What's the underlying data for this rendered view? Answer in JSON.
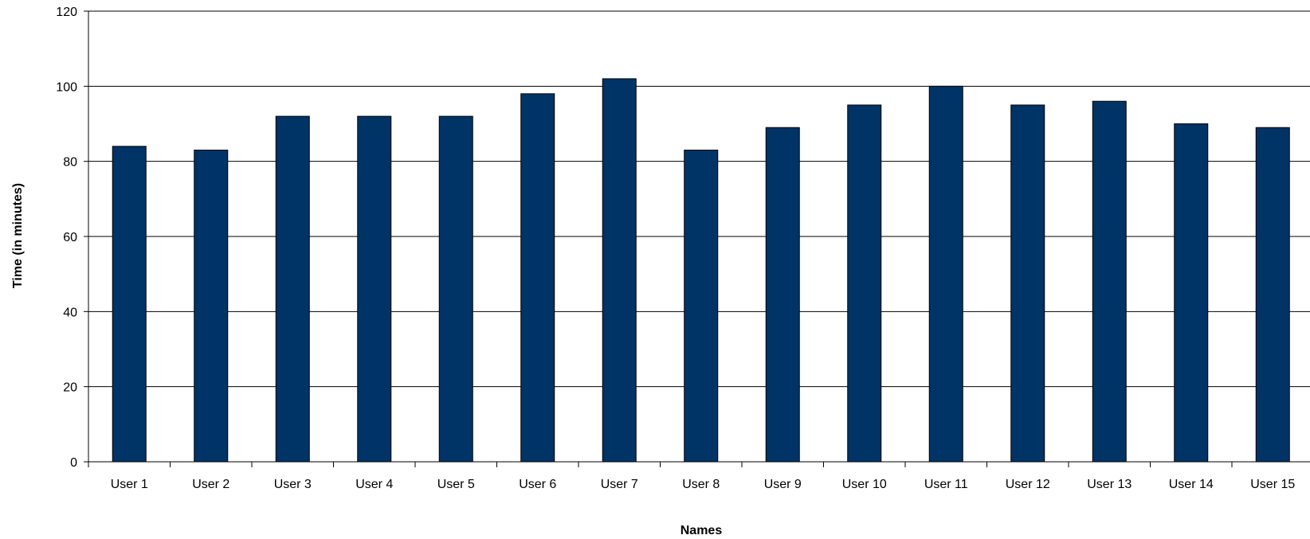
{
  "chart_data": {
    "type": "bar",
    "title": "",
    "xlabel": "Names",
    "ylabel": "Time (in minutes)",
    "categories": [
      "User 1",
      "User 2",
      "User 3",
      "User 4",
      "User 5",
      "User 6",
      "User 7",
      "User 8",
      "User 9",
      "User 10",
      "User 11",
      "User 12",
      "User 13",
      "User 14",
      "User 15"
    ],
    "values": [
      84,
      83,
      92,
      92,
      92,
      98,
      102,
      83,
      89,
      95,
      100,
      95,
      96,
      90,
      89
    ],
    "ylim": [
      0,
      120
    ],
    "yticks": [
      "0",
      "20",
      "40",
      "60",
      "80",
      "100",
      "120"
    ],
    "grid": true,
    "legend": "none",
    "colors": {
      "bar": "#003366",
      "grid": "#000000"
    }
  }
}
